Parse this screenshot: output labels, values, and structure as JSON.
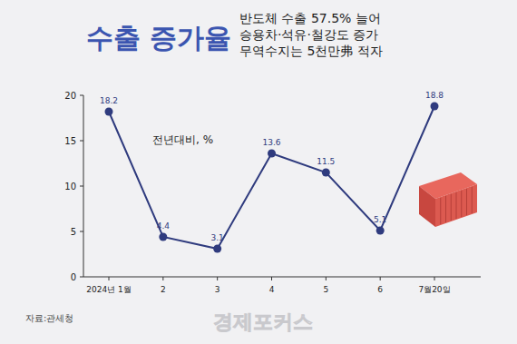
{
  "chart_data": {
    "type": "line",
    "title": "수출 증가율",
    "subtitle": [
      "반도체 수출 57.5% 늘어",
      "승용차·석유·철강도 증가",
      "무역수지는 5천만弗 적자"
    ],
    "annotations": [
      "전년대비, %"
    ],
    "source": "자료:관세청",
    "watermark": "경제포커스",
    "categories": [
      "2024년 1월",
      "2",
      "3",
      "4",
      "5",
      "6",
      "7월20일"
    ],
    "values": [
      18.2,
      4.4,
      3.1,
      13.6,
      11.5,
      5.1,
      18.8
    ],
    "color": "#2f3b7e",
    "marker": "circle",
    "data_labels": true,
    "grid": false,
    "ylim": [
      0,
      20
    ],
    "yticks": [
      0,
      5,
      10,
      15,
      20
    ]
  }
}
